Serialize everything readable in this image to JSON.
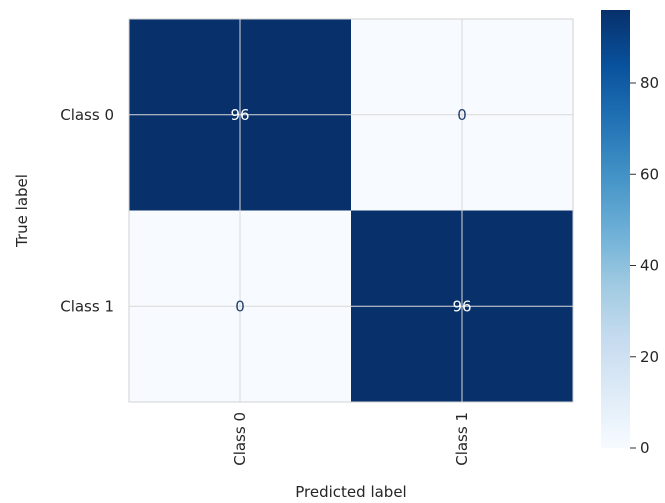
{
  "chart_data": {
    "type": "heatmap",
    "title": "",
    "xlabel": "Predicted label",
    "ylabel": "True label",
    "x_categories": [
      "Class 0",
      "Class 1"
    ],
    "y_categories": [
      "Class 0",
      "Class 1"
    ],
    "values": [
      [
        96,
        0
      ],
      [
        0,
        96
      ]
    ],
    "colormap": "Blues",
    "colorbar": {
      "ticks": [
        0,
        20,
        40,
        60,
        80
      ],
      "tick_labels": [
        "0",
        "20",
        "40",
        "60",
        "80"
      ],
      "range": [
        0,
        96
      ]
    },
    "grid": true
  }
}
